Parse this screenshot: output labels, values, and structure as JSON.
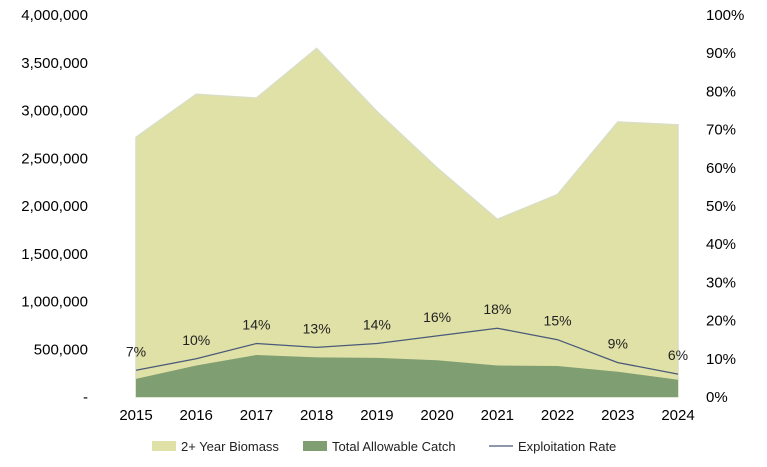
{
  "chart_data": {
    "type": "area",
    "title": "",
    "xlabel": "",
    "ylabel": "",
    "y2label": "",
    "categories": [
      "2015",
      "2016",
      "2017",
      "2018",
      "2019",
      "2020",
      "2021",
      "2022",
      "2023",
      "2024"
    ],
    "series": [
      {
        "name": "2+ Year Biomass",
        "type": "area",
        "axis": "left",
        "color": "#e0e1a6",
        "values": [
          2720000,
          3170000,
          3130000,
          3650000,
          2990000,
          2400000,
          1860000,
          2120000,
          2880000,
          2850000
        ]
      },
      {
        "name": "Total Allowable Catch",
        "type": "area",
        "axis": "left",
        "color": "#7f9e72",
        "values": [
          190000,
          330000,
          440000,
          415000,
          410000,
          385000,
          330000,
          325000,
          265000,
          180000
        ]
      },
      {
        "name": "Exploitation Rate",
        "type": "line",
        "axis": "right",
        "color": "#4a5a7a",
        "values": [
          0.07,
          0.1,
          0.14,
          0.13,
          0.14,
          0.16,
          0.18,
          0.15,
          0.09,
          0.06
        ],
        "data_labels": [
          "7%",
          "10%",
          "14%",
          "13%",
          "14%",
          "16%",
          "18%",
          "15%",
          "9%",
          "6%"
        ]
      }
    ],
    "ylim": [
      0,
      4000000
    ],
    "y2lim": [
      0,
      1
    ],
    "yticks": [
      0,
      500000,
      1000000,
      1500000,
      2000000,
      2500000,
      3000000,
      3500000,
      4000000
    ],
    "ytick_labels": [
      "-",
      "500,000",
      "1,000,000",
      "1,500,000",
      "2,000,000",
      "2,500,000",
      "3,000,000",
      "3,500,000",
      "4,000,000"
    ],
    "y2ticks": [
      0,
      0.1,
      0.2,
      0.3,
      0.4,
      0.5,
      0.6,
      0.7,
      0.8,
      0.9,
      1.0
    ],
    "y2tick_labels": [
      "0%",
      "10%",
      "20%",
      "30%",
      "40%",
      "50%",
      "60%",
      "70%",
      "80%",
      "90%",
      "100%"
    ],
    "grid": false,
    "legend_position": "bottom-center"
  }
}
